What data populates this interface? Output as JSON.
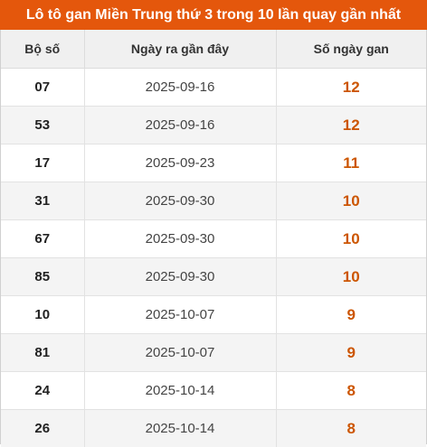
{
  "title": "Lô tô gan Miền Trung thứ 3 trong 10 lần quay gần nhất",
  "colors": {
    "title_background": "#e4570c",
    "gan_value": "#cc5500"
  },
  "table": {
    "headers": [
      "Bộ số",
      "Ngày ra gần đây",
      "Số ngày gan"
    ],
    "rows": [
      {
        "number": "07",
        "date": "2025-09-16",
        "days": "12"
      },
      {
        "number": "53",
        "date": "2025-09-16",
        "days": "12"
      },
      {
        "number": "17",
        "date": "2025-09-23",
        "days": "11"
      },
      {
        "number": "31",
        "date": "2025-09-30",
        "days": "10"
      },
      {
        "number": "67",
        "date": "2025-09-30",
        "days": "10"
      },
      {
        "number": "85",
        "date": "2025-09-30",
        "days": "10"
      },
      {
        "number": "10",
        "date": "2025-10-07",
        "days": "9"
      },
      {
        "number": "81",
        "date": "2025-10-07",
        "days": "9"
      },
      {
        "number": "24",
        "date": "2025-10-14",
        "days": "8"
      },
      {
        "number": "26",
        "date": "2025-10-14",
        "days": "8"
      }
    ]
  }
}
